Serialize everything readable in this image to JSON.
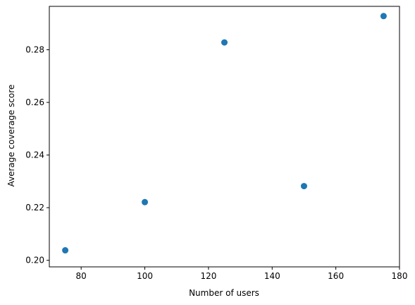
{
  "chart_data": {
    "type": "scatter",
    "title": "",
    "xlabel": "Number of users",
    "ylabel": "Average coverage score",
    "xlim": [
      70,
      180
    ],
    "ylim": [
      0.1975,
      0.2965
    ],
    "x_ticks": [
      80,
      100,
      120,
      140,
      160,
      180
    ],
    "y_ticks": [
      0.2,
      0.22,
      0.24,
      0.26,
      0.28
    ],
    "x_tick_labels": [
      "80",
      "100",
      "120",
      "140",
      "160",
      "180"
    ],
    "y_tick_labels": [
      "0.20",
      "0.22",
      "0.24",
      "0.26",
      "0.28"
    ],
    "grid": false,
    "legend": "none",
    "marker_color": "#1f77b4",
    "series": [
      {
        "points": [
          {
            "x": 75,
            "y": 0.2038
          },
          {
            "x": 100,
            "y": 0.2221
          },
          {
            "x": 125,
            "y": 0.2828
          },
          {
            "x": 150,
            "y": 0.2282
          },
          {
            "x": 175,
            "y": 0.2928
          }
        ]
      }
    ]
  }
}
